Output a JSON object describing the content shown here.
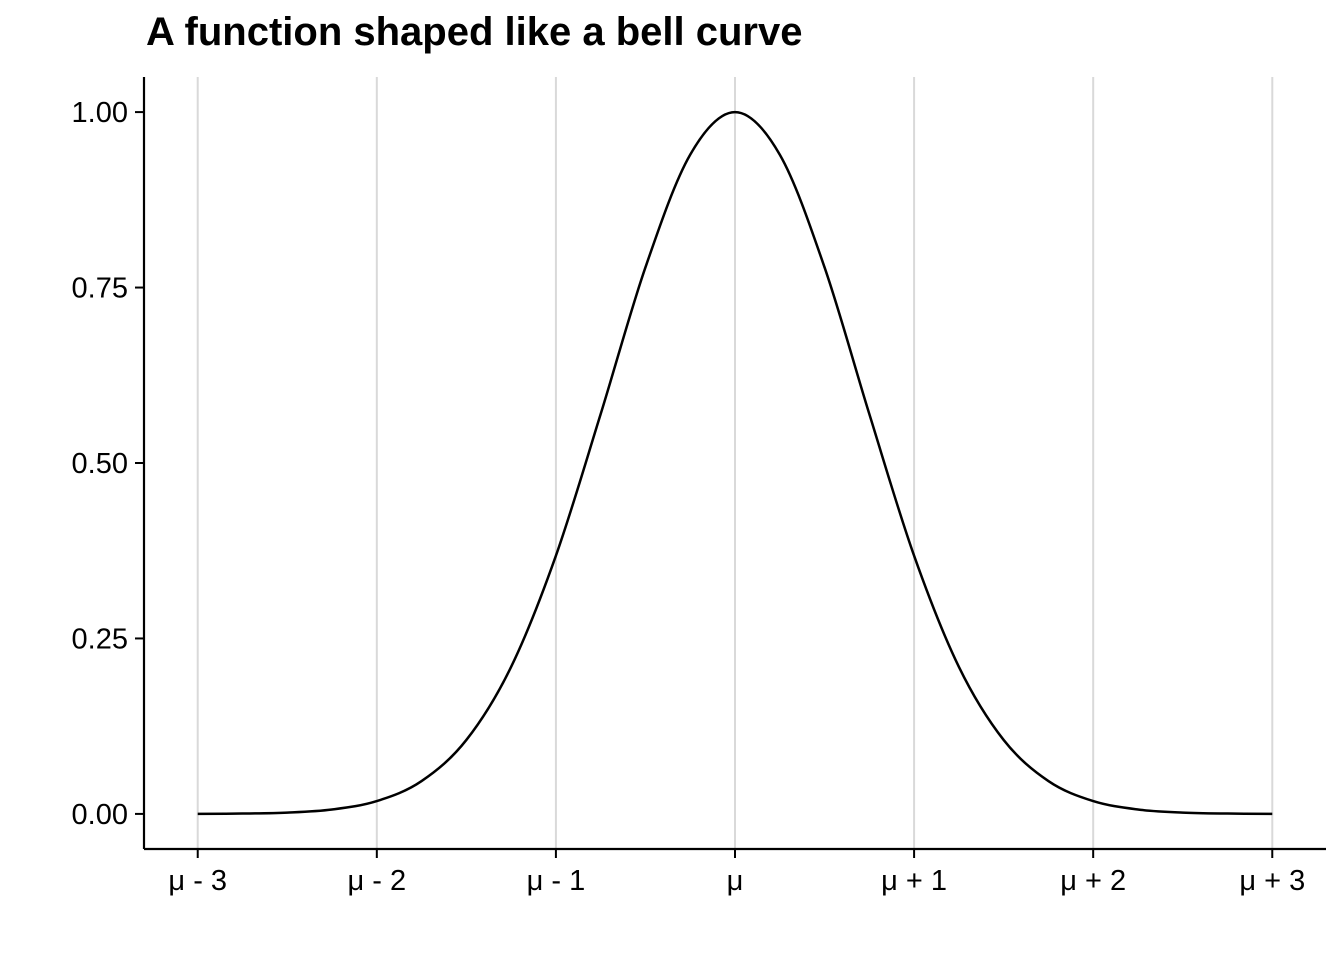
{
  "chart_data": {
    "type": "line",
    "title": "A function shaped like a bell curve",
    "xlabel": "",
    "ylabel": "",
    "xlim": [
      -3.3,
      3.3
    ],
    "ylim": [
      -0.05,
      1.05
    ],
    "x_ticks": [
      {
        "value": -3,
        "label": "μ - 3"
      },
      {
        "value": -2,
        "label": "μ - 2"
      },
      {
        "value": -1,
        "label": "μ - 1"
      },
      {
        "value": 0,
        "label": "μ"
      },
      {
        "value": 1,
        "label": "μ + 1"
      },
      {
        "value": 2,
        "label": "μ + 2"
      },
      {
        "value": 3,
        "label": "μ + 3"
      }
    ],
    "y_ticks": [
      {
        "value": 0.0,
        "label": "0.00"
      },
      {
        "value": 0.25,
        "label": "0.25"
      },
      {
        "value": 0.5,
        "label": "0.50"
      },
      {
        "value": 0.75,
        "label": "0.75"
      },
      {
        "value": 1.0,
        "label": "1.00"
      }
    ],
    "grid": "vertical major",
    "series": [
      {
        "color": "#000000",
        "x": [
          -3.0,
          -2.75,
          -2.5,
          -2.25,
          -2.0,
          -1.75,
          -1.5,
          -1.25,
          -1.0,
          -0.75,
          -0.5,
          -0.25,
          0.0,
          0.25,
          0.5,
          0.75,
          1.0,
          1.25,
          1.5,
          1.75,
          2.0,
          2.25,
          2.5,
          2.75,
          3.0
        ],
        "y": [
          0.0001,
          0.0005,
          0.0019,
          0.0063,
          0.0183,
          0.0468,
          0.1054,
          0.2096,
          0.3679,
          0.5698,
          0.7788,
          0.9394,
          1.0,
          0.9394,
          0.7788,
          0.5698,
          0.3679,
          0.2096,
          0.1054,
          0.0468,
          0.0183,
          0.0063,
          0.0019,
          0.0005,
          0.0001
        ]
      }
    ],
    "colors": {
      "grid": "#d9d9d9",
      "axis": "#000000",
      "curve": "#000000"
    }
  }
}
